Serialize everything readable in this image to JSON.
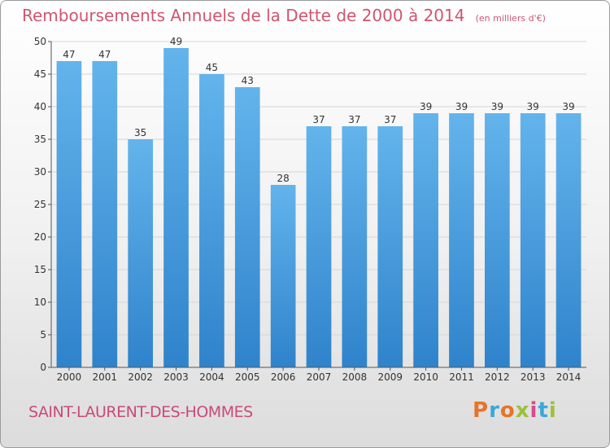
{
  "header": {
    "title": "Remboursements Annuels de la Dette de 2000 à 2014",
    "unit": "(en milliers d'€)"
  },
  "footer": {
    "commune": "SAINT-LAURENT-DES-HOMMES",
    "brand": "Proxiti"
  },
  "colors": {
    "bar": "#3d93d9",
    "bar_light": "#5fb1ea",
    "title": "#d0556f",
    "commune": "#c94a7a"
  },
  "chart_data": {
    "type": "bar",
    "title": "Remboursements Annuels de la Dette de 2000 à 2014",
    "subtitle": "(en milliers d'€)",
    "xlabel": "",
    "ylabel": "",
    "categories": [
      "2000",
      "2001",
      "2002",
      "2003",
      "2004",
      "2005",
      "2006",
      "2007",
      "2008",
      "2009",
      "2010",
      "2011",
      "2012",
      "2013",
      "2014"
    ],
    "values": [
      47,
      47,
      35,
      49,
      45,
      43,
      28,
      37,
      37,
      37,
      39,
      39,
      39,
      39,
      39
    ],
    "data_labels": [
      "47",
      "47",
      "35",
      "49",
      "45",
      "43",
      "28",
      "37",
      "37",
      "37",
      "39",
      "39",
      "39",
      "39",
      "39"
    ],
    "ylim": [
      0,
      50
    ],
    "yticks": [
      0,
      5,
      10,
      15,
      20,
      25,
      30,
      35,
      40,
      45,
      50
    ],
    "grid": true,
    "legend": "none"
  }
}
